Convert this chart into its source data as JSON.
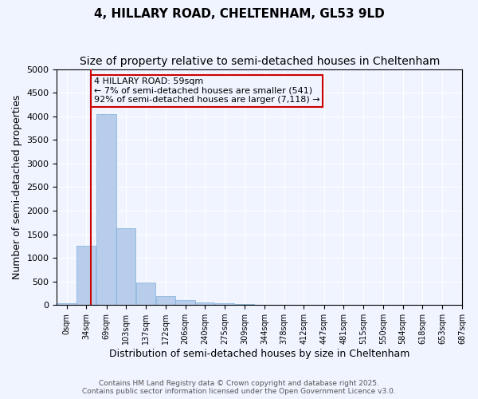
{
  "title": "4, HILLARY ROAD, CHELTENHAM, GL53 9LD",
  "subtitle": "Size of property relative to semi-detached houses in Cheltenham",
  "xlabel": "Distribution of semi-detached houses by size in Cheltenham",
  "ylabel": "Number of semi-detached properties",
  "property_size": 59,
  "property_label": "4 HILLARY ROAD: 59sqm",
  "annotation_line1": "← 7% of semi-detached houses are smaller (541)",
  "annotation_line2": "92% of semi-detached houses are larger (7,118) →",
  "bin_labels": [
    "0sqm",
    "34sqm",
    "69sqm",
    "103sqm",
    "137sqm",
    "172sqm",
    "206sqm",
    "240sqm",
    "275sqm",
    "309sqm",
    "344sqm",
    "378sqm",
    "412sqm",
    "447sqm",
    "481sqm",
    "515sqm",
    "550sqm",
    "584sqm",
    "618sqm",
    "653sqm",
    "687sqm"
  ],
  "bin_edges": [
    0,
    34,
    69,
    103,
    137,
    172,
    206,
    240,
    275,
    309,
    344,
    378,
    412,
    447,
    481,
    515,
    550,
    584,
    618,
    653,
    687
  ],
  "bar_heights": [
    30,
    1250,
    4050,
    1620,
    470,
    185,
    110,
    55,
    30,
    15,
    8,
    4,
    2,
    1,
    1,
    0,
    0,
    0,
    0,
    0
  ],
  "bar_color": "#aec6e8",
  "bar_edge_color": "#6fa8d4",
  "bar_alpha": 0.85,
  "vline_x": 59,
  "vline_color": "#cc0000",
  "ylim": [
    0,
    5000
  ],
  "yticks": [
    0,
    500,
    1000,
    1500,
    2000,
    2500,
    3000,
    3500,
    4000,
    4500,
    5000
  ],
  "annotation_box_color": "#cc0000",
  "annotation_text_color": "#000000",
  "background_color": "#f0f4ff",
  "grid_color": "#ffffff",
  "footer_line1": "Contains HM Land Registry data © Crown copyright and database right 2025.",
  "footer_line2": "Contains public sector information licensed under the Open Government Licence v3.0.",
  "title_fontsize": 11,
  "subtitle_fontsize": 10,
  "axis_label_fontsize": 9,
  "tick_fontsize": 8,
  "annotation_fontsize": 8
}
